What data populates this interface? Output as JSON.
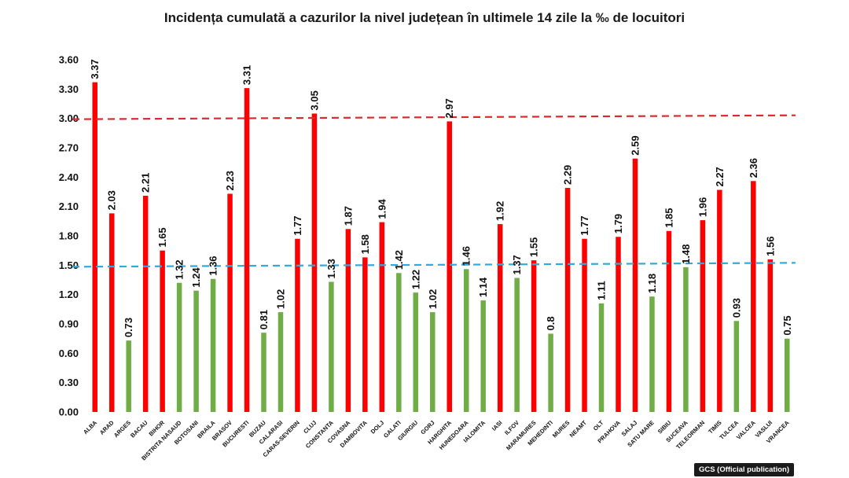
{
  "chart_data": {
    "type": "bar",
    "title": "Incidența cumulată a cazurilor la nivel județean în ultimele 14 zile la ‰ de locuitori",
    "xlabel": "",
    "ylabel": "",
    "ylim": [
      0,
      3.6
    ],
    "yticks": [
      "0.00",
      "0.30",
      "0.60",
      "0.90",
      "1.20",
      "1.50",
      "1.80",
      "2.10",
      "2.40",
      "2.70",
      "3.00",
      "3.30",
      "3.60"
    ],
    "categories": [
      "ALBA",
      "ARAD",
      "ARGES",
      "BACAU",
      "BIHOR",
      "BISTRITA NASAUD",
      "BOTOSANI",
      "BRAILA",
      "BRASOV",
      "BUCURESTI",
      "BUZAU",
      "CALARASI",
      "CARAS-SEVERIN",
      "CLUJ",
      "CONSTANTA",
      "COVASNA",
      "DAMBOVITA",
      "DOLJ",
      "GALATI",
      "GIURGIU",
      "GORJ",
      "HARGHITA",
      "HUNEDOARA",
      "IALOMITA",
      "IASI",
      "ILFOV",
      "MARAMURES",
      "MEHEDINTI",
      "MURES",
      "NEAMT",
      "OLT",
      "PRAHOVA",
      "SALAJ",
      "SATU MARE",
      "SIBIU",
      "SUCEAVA",
      "TELEORMAN",
      "TIMIS",
      "TULCEA",
      "VALCEA",
      "VASLUI",
      "VRANCEA"
    ],
    "values": [
      3.37,
      2.03,
      0.73,
      2.21,
      1.65,
      1.32,
      1.24,
      1.36,
      2.23,
      3.31,
      0.81,
      1.02,
      1.77,
      3.05,
      1.33,
      1.87,
      1.58,
      1.94,
      1.42,
      1.22,
      1.02,
      2.97,
      1.46,
      1.14,
      1.92,
      1.37,
      1.55,
      0.8,
      2.29,
      1.77,
      1.11,
      1.79,
      2.59,
      1.18,
      1.85,
      1.48,
      1.96,
      2.27,
      0.93,
      2.36,
      1.56,
      0.75
    ],
    "value_labels": [
      "3.37",
      "2.03",
      "0.73",
      "2.21",
      "1.65",
      "1.32",
      "1.24",
      "1.36",
      "2.23",
      "3.31",
      "0.81",
      "1.02",
      "1.77",
      "3.05",
      "1.33",
      "1.87",
      "1.58",
      "1.94",
      "1.42",
      "1.22",
      "1.02",
      "2.97",
      "1.46",
      "1.14",
      "1.92",
      "1.37",
      "1.55",
      "0.8",
      "2.29",
      "1.77",
      "1.11",
      "1.79",
      "2.59",
      "1.18",
      "1.85",
      "1.48",
      "1.96",
      "2.27",
      "0.93",
      "2.36",
      "1.56",
      "0.75"
    ],
    "threshold_high": 3.0,
    "threshold_low": 1.5,
    "color_above_threshold": "#ff0000",
    "color_below_threshold": "#70ad47",
    "color_threshold_high": "#d92b2b",
    "color_threshold_low": "#2eaadc",
    "grid": false,
    "legend": "none"
  },
  "footer": {
    "credit": "GCS (Official publication)"
  }
}
